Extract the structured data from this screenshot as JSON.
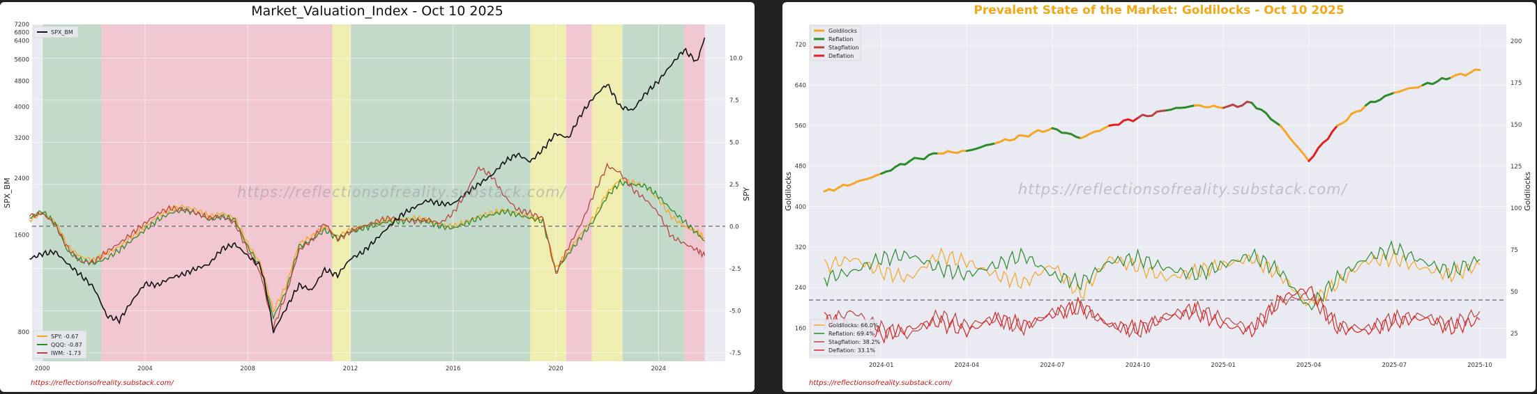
{
  "watermark": "https://reflectionsofreality.substack.com/",
  "footer_url": "https://reflectionsofreality.substack.com/",
  "colors": {
    "goldilocks": "#f5a623",
    "reflation": "#2a8a2a",
    "stagflation": "#b5463f",
    "deflation": "#e01f1f",
    "spx": "#111111",
    "spy": "#f5a623",
    "qqq": "#2a8a2a",
    "iwm": "#b5463f",
    "regime_green": "#b9d6bf",
    "regime_yellow": "#f1ee9f",
    "regime_red": "#f3bec8",
    "plot_bg": "#eaeaf2"
  },
  "left_chart": {
    "title": "Market_Valuation_Index  - Oct 10 2025",
    "ylabel_left": "SPX_BM",
    "ylabel_right": "SPY",
    "left_ticks": [
      7200,
      6800,
      6400,
      5600,
      4800,
      4000,
      3200,
      2400,
      1600,
      800
    ],
    "right_ticks": [
      "10.0",
      "7.5",
      "5.0",
      "2.5",
      "0.0",
      "-2.5",
      "-5.0",
      "-7.5"
    ],
    "x_ticks": [
      "2000",
      "2004",
      "2008",
      "2012",
      "2016",
      "2020",
      "2024"
    ],
    "legend_top": [
      "SPX_BM"
    ],
    "legend_bottom": [
      "SPY: -0.67",
      "QQQ: -0.87",
      "IWM: -1.73"
    ]
  },
  "right_chart": {
    "title": "Prevalent State of the Market: Goldilocks - Oct 10 2025",
    "ylabel_left": "Goldilocks",
    "ylabel_right": "Goldilocks",
    "left_ticks": [
      "720",
      "640",
      "560",
      "480",
      "400",
      "320",
      "240",
      "160"
    ],
    "right_ticks": [
      "200",
      "175",
      "150",
      "125",
      "100",
      "75",
      "50",
      "25"
    ],
    "x_ticks": [
      "2024-01",
      "2024-04",
      "2024-07",
      "2024-10",
      "2025-01",
      "2025-04",
      "2025-07",
      "2025-10"
    ],
    "legend_top": [
      "Goldilocks",
      "Reflation",
      "Stagflation",
      "Deflation"
    ],
    "legend_bottom": [
      "Goldilocks: 66.0%",
      "Reflation: 69.4%",
      "Stagflation: 38.2%",
      "Deflation: 33.1%"
    ]
  },
  "chart_data": [
    {
      "type": "line",
      "title": "Market_Valuation_Index  - Oct 10 2025",
      "xlabel": "",
      "ylabel": "SPX_BM",
      "y2label": "SPY",
      "x": [
        1999.5,
        2000,
        2000.5,
        2001,
        2001.5,
        2002,
        2002.5,
        2003,
        2003.5,
        2004,
        2004.5,
        2005,
        2005.5,
        2006,
        2006.5,
        2007,
        2007.5,
        2008,
        2008.5,
        2009,
        2009.5,
        2010,
        2010.5,
        2011,
        2011.5,
        2012,
        2012.5,
        2013,
        2013.5,
        2014,
        2014.5,
        2015,
        2015.5,
        2016,
        2016.5,
        2017,
        2017.5,
        2018,
        2018.5,
        2019,
        2019.5,
        2020,
        2020.5,
        2021,
        2021.5,
        2022,
        2022.5,
        2023,
        2023.5,
        2024,
        2024.5,
        2025,
        2025.5,
        2025.8
      ],
      "series": [
        {
          "name": "SPX_BM",
          "axis": "left",
          "values": [
            1350,
            1400,
            1420,
            1300,
            1200,
            1100,
            900,
            870,
            1000,
            1130,
            1120,
            1180,
            1210,
            1260,
            1300,
            1450,
            1500,
            1380,
            1280,
            800,
            950,
            1120,
            1080,
            1250,
            1200,
            1350,
            1420,
            1550,
            1700,
            1850,
            1950,
            2050,
            2000,
            2000,
            2150,
            2300,
            2450,
            2700,
            2850,
            2700,
            2950,
            3300,
            3200,
            3800,
            4300,
            4700,
            4000,
            3900,
            4400,
            4800,
            5400,
            6000,
            5500,
            6550
          ]
        },
        {
          "name": "SPY",
          "axis": "right",
          "values": [
            0.4,
            0.8,
            0.3,
            -1.2,
            -1.8,
            -2.0,
            -1.6,
            -1.2,
            -0.6,
            0.0,
            0.6,
            1.0,
            1.2,
            1.0,
            0.6,
            0.8,
            0.5,
            -1.0,
            -2.2,
            -5.0,
            -3.5,
            -1.0,
            -0.6,
            0.0,
            -0.6,
            -0.2,
            0.0,
            0.2,
            0.4,
            0.4,
            0.5,
            0.4,
            0.1,
            0.0,
            0.3,
            0.6,
            0.8,
            1.0,
            0.8,
            0.6,
            0.4,
            -2.5,
            -1.4,
            -0.4,
            0.6,
            2.0,
            2.8,
            2.6,
            2.4,
            1.6,
            0.6,
            0.0,
            -0.3,
            -0.67
          ]
        },
        {
          "name": "QQQ",
          "axis": "right",
          "values": [
            0.5,
            0.9,
            0.2,
            -1.5,
            -2.0,
            -2.2,
            -1.9,
            -1.4,
            -0.8,
            -0.2,
            0.4,
            0.8,
            1.0,
            0.8,
            0.4,
            0.6,
            0.4,
            -1.2,
            -2.4,
            -5.4,
            -3.8,
            -1.2,
            -0.8,
            -0.2,
            -0.7,
            -0.3,
            -0.1,
            0.1,
            0.3,
            0.3,
            0.4,
            0.3,
            0.0,
            -0.1,
            0.2,
            0.5,
            0.7,
            0.9,
            0.7,
            0.5,
            0.3,
            -2.7,
            -1.6,
            -0.6,
            0.4,
            1.8,
            2.6,
            2.5,
            2.4,
            1.8,
            1.0,
            0.3,
            -0.4,
            -0.87
          ]
        },
        {
          "name": "IWM",
          "axis": "right",
          "values": [
            0.6,
            0.8,
            0.1,
            -1.3,
            -2.1,
            -2.1,
            -1.5,
            -1.0,
            -0.4,
            0.2,
            0.8,
            1.1,
            1.0,
            0.8,
            0.5,
            0.6,
            0.2,
            -1.4,
            -2.8,
            -6.0,
            -4.0,
            -1.4,
            -0.8,
            0.2,
            -0.8,
            -0.3,
            0.0,
            0.3,
            0.5,
            0.4,
            0.3,
            0.4,
            0.2,
            0.8,
            2.0,
            3.5,
            3.0,
            1.8,
            1.0,
            0.8,
            0.5,
            -2.8,
            -1.2,
            0.2,
            2.0,
            3.6,
            3.2,
            2.2,
            1.6,
            0.8,
            -0.6,
            -1.0,
            -1.4,
            -1.73
          ]
        }
      ],
      "regimes": [
        {
          "start": 2000.0,
          "end": 2002.3,
          "state": "reflation"
        },
        {
          "start": 2002.3,
          "end": 2011.3,
          "state": "stagflation"
        },
        {
          "start": 2011.3,
          "end": 2012.0,
          "state": "goldilocks"
        },
        {
          "start": 2012.0,
          "end": 2019.0,
          "state": "reflation"
        },
        {
          "start": 2019.0,
          "end": 2020.4,
          "state": "goldilocks"
        },
        {
          "start": 2020.4,
          "end": 2021.4,
          "state": "stagflation"
        },
        {
          "start": 2021.4,
          "end": 2022.6,
          "state": "goldilocks"
        },
        {
          "start": 2022.6,
          "end": 2025.0,
          "state": "reflation"
        },
        {
          "start": 2025.0,
          "end": 2025.8,
          "state": "stagflation"
        }
      ],
      "ylim": [
        650,
        7200
      ],
      "y2lim": [
        -8,
        12
      ],
      "xlim": [
        1999.6,
        2026.6
      ],
      "hline": 0.0,
      "yscale": "log",
      "grid": true,
      "legend": "top-left / bottom-left"
    },
    {
      "type": "line",
      "title": "Prevalent State of the Market: Goldilocks - Oct 10 2025",
      "xlabel": "",
      "ylabel": "Goldilocks",
      "y2label": "Goldilocks",
      "x": [
        "2023-11",
        "2023-12",
        "2024-01",
        "2024-02",
        "2024-03",
        "2024-04",
        "2024-05",
        "2024-06",
        "2024-07",
        "2024-08",
        "2024-09",
        "2024-10",
        "2024-11",
        "2024-12",
        "2025-01",
        "2025-02",
        "2025-03",
        "2025-04",
        "2025-05",
        "2025-06",
        "2025-07",
        "2025-08",
        "2025-09",
        "2025-10"
      ],
      "price": [
        430,
        445,
        465,
        490,
        505,
        510,
        525,
        540,
        555,
        535,
        560,
        575,
        590,
        600,
        595,
        605,
        560,
        490,
        560,
        600,
        625,
        640,
        655,
        670
      ],
      "price_state": [
        "goldilocks",
        "goldilocks",
        "reflation",
        "reflation",
        "goldilocks",
        "reflation",
        "goldilocks",
        "goldilocks",
        "reflation",
        "goldilocks",
        "deflation",
        "stagflation",
        "reflation",
        "goldilocks",
        "stagflation",
        "reflation",
        "goldilocks",
        "deflation",
        "goldilocks",
        "reflation",
        "goldilocks",
        "reflation",
        "goldilocks",
        "reflation"
      ],
      "series": [
        {
          "name": "Goldilocks",
          "axis": "right",
          "values": [
            65,
            70,
            62,
            58,
            72,
            68,
            60,
            55,
            66,
            48,
            70,
            65,
            58,
            62,
            66,
            70,
            60,
            42,
            55,
            68,
            70,
            64,
            60,
            66
          ]
        },
        {
          "name": "Reflation",
          "axis": "right",
          "values": [
            58,
            62,
            70,
            72,
            64,
            60,
            66,
            72,
            60,
            55,
            68,
            70,
            64,
            60,
            66,
            72,
            62,
            40,
            58,
            70,
            76,
            68,
            62,
            69.4
          ]
        },
        {
          "name": "Stagflation",
          "axis": "right",
          "values": [
            32,
            38,
            28,
            24,
            36,
            30,
            34,
            28,
            38,
            40,
            30,
            26,
            36,
            40,
            34,
            28,
            44,
            48,
            30,
            28,
            34,
            36,
            30,
            38.2
          ]
        },
        {
          "name": "Deflation",
          "axis": "right",
          "values": [
            34,
            30,
            24,
            28,
            32,
            26,
            34,
            30,
            36,
            42,
            30,
            28,
            34,
            38,
            30,
            26,
            46,
            52,
            28,
            26,
            32,
            34,
            28,
            33.1
          ]
        }
      ],
      "ylim": [
        100,
        760
      ],
      "y2lim": [
        10,
        210
      ],
      "hline": 50,
      "grid": true,
      "legend": "top-left / bottom-left"
    }
  ]
}
